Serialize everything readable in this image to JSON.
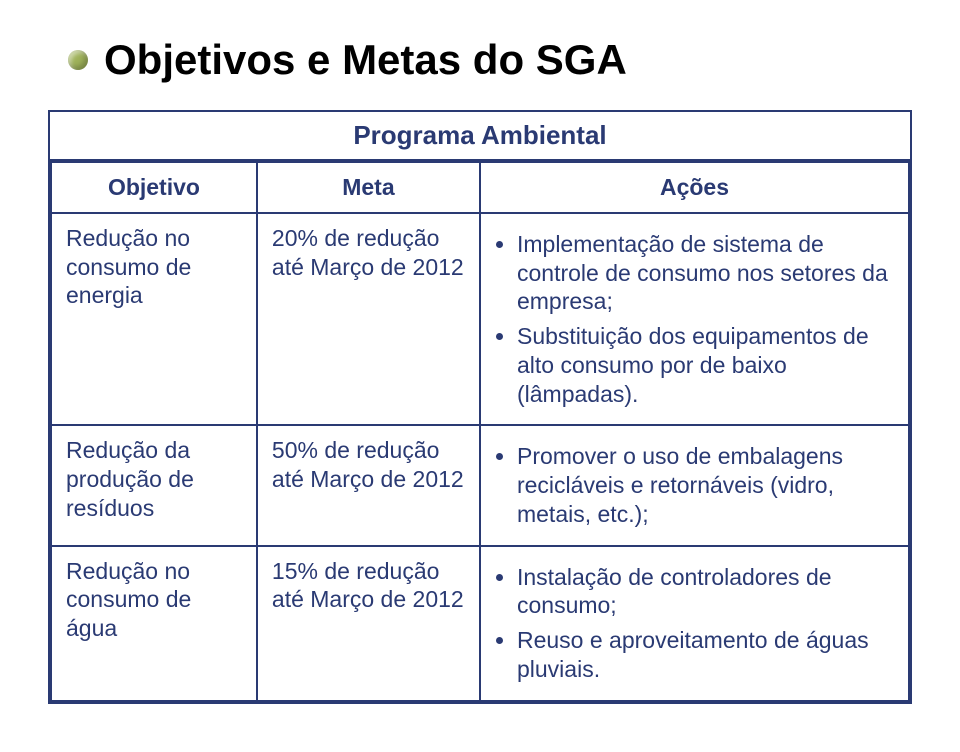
{
  "colors": {
    "border": "#2a3a73",
    "text": "#2a3a73",
    "bullet": "#9fb25a",
    "background": "#ffffff"
  },
  "typography": {
    "title_fontsize": 42,
    "caption_fontsize": 26,
    "cell_fontsize": 23,
    "font_family": "Arial"
  },
  "title": "Objetivos e Metas do SGA",
  "table": {
    "caption": "Programa Ambiental",
    "column_widths_pct": [
      24,
      26,
      50
    ],
    "headers": {
      "objetivo": "Objetivo",
      "meta": "Meta",
      "acoes": "Ações"
    },
    "rows": [
      {
        "objetivo": "Redução no consumo de energia",
        "meta": "20% de redução até Março de 2012",
        "acoes": [
          "Implementação de sistema de controle de consumo nos setores da empresa;",
          "Substituição dos equipamentos de alto consumo por de baixo (lâmpadas)."
        ]
      },
      {
        "objetivo": "Redução da produção de resíduos",
        "meta": "50% de redução até Março de 2012",
        "acoes": [
          "Promover o uso de embalagens recicláveis e retornáveis (vidro, metais, etc.);"
        ]
      },
      {
        "objetivo": "Redução no consumo de água",
        "meta": "15% de redução até Março de 2012",
        "acoes": [
          "Instalação de controladores de consumo;",
          "Reuso e aproveitamento de águas pluviais."
        ]
      }
    ]
  }
}
